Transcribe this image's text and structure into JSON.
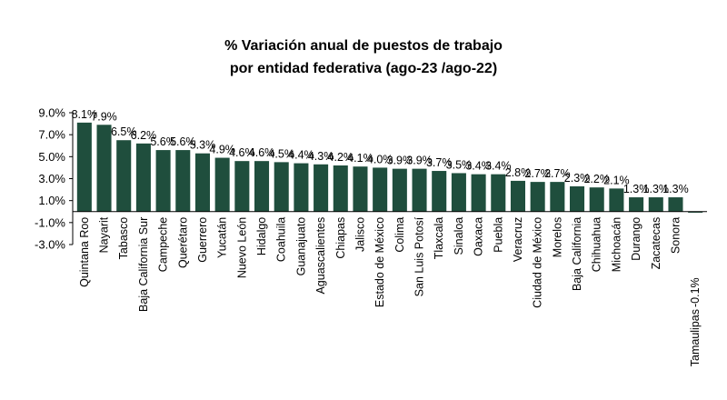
{
  "chart_data": {
    "type": "bar",
    "title": "% Variación anual de puestos de trabajo",
    "subtitle": "por entidad federativa (ago-23 /ago-22)",
    "xlabel": "",
    "ylabel": "",
    "ylim": [
      -3.0,
      9.0
    ],
    "yticks": [
      9.0,
      7.0,
      5.0,
      3.0,
      1.0,
      -1.0,
      -3.0
    ],
    "ytick_labels": [
      "9.0%",
      "7.0%",
      "5.0%",
      "3.0%",
      "1.0%",
      "-1.0%",
      "-3.0%"
    ],
    "grid": false,
    "legend": "none",
    "bar_color": "#1f4e3d",
    "categories": [
      "Quintana Roo",
      "Nayarit",
      "Tabasco",
      "Baja California Sur",
      "Campeche",
      "Querétaro",
      "Guerrero",
      "Yucatán",
      "Nuevo León",
      "Hidalgo",
      "Coahuila",
      "Guanajuato",
      "Aguascalientes",
      "Chiapas",
      "Jalisco",
      "Estado de México",
      "Colima",
      "San Luis Potosí",
      "Tlaxcala",
      "Sinaloa",
      "Oaxaca",
      "Puebla",
      "Veracruz",
      "Ciudad de México",
      "Morelos",
      "Baja California",
      "Chihuahua",
      "Michoacán",
      "Durango",
      "Zacatecas",
      "Sonora",
      "Tamaulipas"
    ],
    "values": [
      8.1,
      7.9,
      6.5,
      6.2,
      5.6,
      5.6,
      5.3,
      4.9,
      4.6,
      4.6,
      4.5,
      4.4,
      4.3,
      4.2,
      4.1,
      4.0,
      3.9,
      3.9,
      3.7,
      3.5,
      3.4,
      3.4,
      2.8,
      2.7,
      2.7,
      2.3,
      2.2,
      2.1,
      1.3,
      1.3,
      1.3,
      -0.1
    ],
    "data_labels": [
      "8.1%",
      "7.9%",
      "6.5%",
      "6.2%",
      "5.6%",
      "5.6%",
      "5.3%",
      "4.9%",
      "4.6%",
      "4.6%",
      "4.5%",
      "4.4%",
      "4.3%",
      "4.2%",
      "4.1%",
      "4.0%",
      "3.9%",
      "3.9%",
      "3.7%",
      "3.5%",
      "3.4%",
      "3.4%",
      "2.8%",
      "2.7%",
      "2.7%",
      "2.3%",
      "2.2%",
      "2.1%",
      "1.3%",
      "1.3%",
      "1.3%",
      "-0.1%"
    ]
  }
}
